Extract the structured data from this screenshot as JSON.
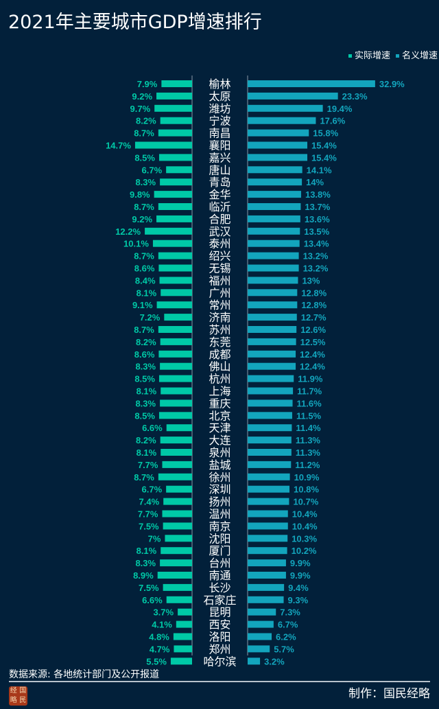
{
  "title": "2021年主要城市GDP增速排行",
  "footer": {
    "source": "数据来源: 各地统计部门及公开报道",
    "maker": "制作：国民经略",
    "logo_text": "国民经略"
  },
  "chart_data": {
    "type": "bar",
    "title": "2021年主要城市GDP增速排行",
    "orientation": "horizontal-butterfly",
    "colors": {
      "real": "#00c9a7",
      "nominal": "#13a5bd",
      "background": "#02203a"
    },
    "legend": "top-right",
    "grid": false,
    "categories": [
      "榆林",
      "太原",
      "潍坊",
      "宁波",
      "南昌",
      "襄阳",
      "嘉兴",
      "唐山",
      "青岛",
      "金华",
      "临沂",
      "合肥",
      "武汉",
      "泰州",
      "绍兴",
      "无锡",
      "福州",
      "广州",
      "常州",
      "济南",
      "苏州",
      "东莞",
      "成都",
      "佛山",
      "杭州",
      "上海",
      "重庆",
      "北京",
      "天津",
      "大连",
      "泉州",
      "盐城",
      "徐州",
      "深圳",
      "扬州",
      "温州",
      "南京",
      "沈阳",
      "厦门",
      "台州",
      "南通",
      "长沙",
      "石家庄",
      "昆明",
      "西安",
      "洛阳",
      "郑州",
      "哈尔滨"
    ],
    "series": [
      {
        "name": "实际增速",
        "unit": "%",
        "values": [
          7.9,
          9.2,
          9.7,
          8.2,
          8.7,
          14.7,
          8.5,
          6.7,
          8.3,
          9.8,
          8.7,
          9.2,
          12.2,
          10.1,
          8.7,
          8.6,
          8.4,
          8.1,
          9.1,
          7.2,
          8.7,
          8.2,
          8.6,
          8.3,
          8.5,
          8.1,
          8.3,
          8.5,
          6.6,
          8.2,
          8.1,
          7.7,
          8.7,
          6.7,
          7.4,
          7.7,
          7.5,
          7.0,
          8.1,
          8.3,
          8.9,
          7.5,
          6.6,
          3.7,
          4.1,
          4.8,
          4.7,
          5.5
        ]
      },
      {
        "name": "名义增速",
        "unit": "%",
        "values": [
          32.9,
          23.3,
          19.4,
          17.6,
          15.8,
          15.4,
          15.4,
          14.1,
          14.0,
          13.8,
          13.7,
          13.6,
          13.5,
          13.4,
          13.2,
          13.2,
          13.0,
          12.8,
          12.8,
          12.7,
          12.6,
          12.5,
          12.4,
          12.4,
          11.9,
          11.7,
          11.6,
          11.5,
          11.4,
          11.3,
          11.3,
          11.2,
          10.9,
          10.8,
          10.7,
          10.4,
          10.4,
          10.3,
          10.2,
          9.9,
          9.9,
          9.4,
          9.3,
          7.3,
          6.7,
          6.2,
          5.7,
          3.2
        ]
      }
    ]
  }
}
